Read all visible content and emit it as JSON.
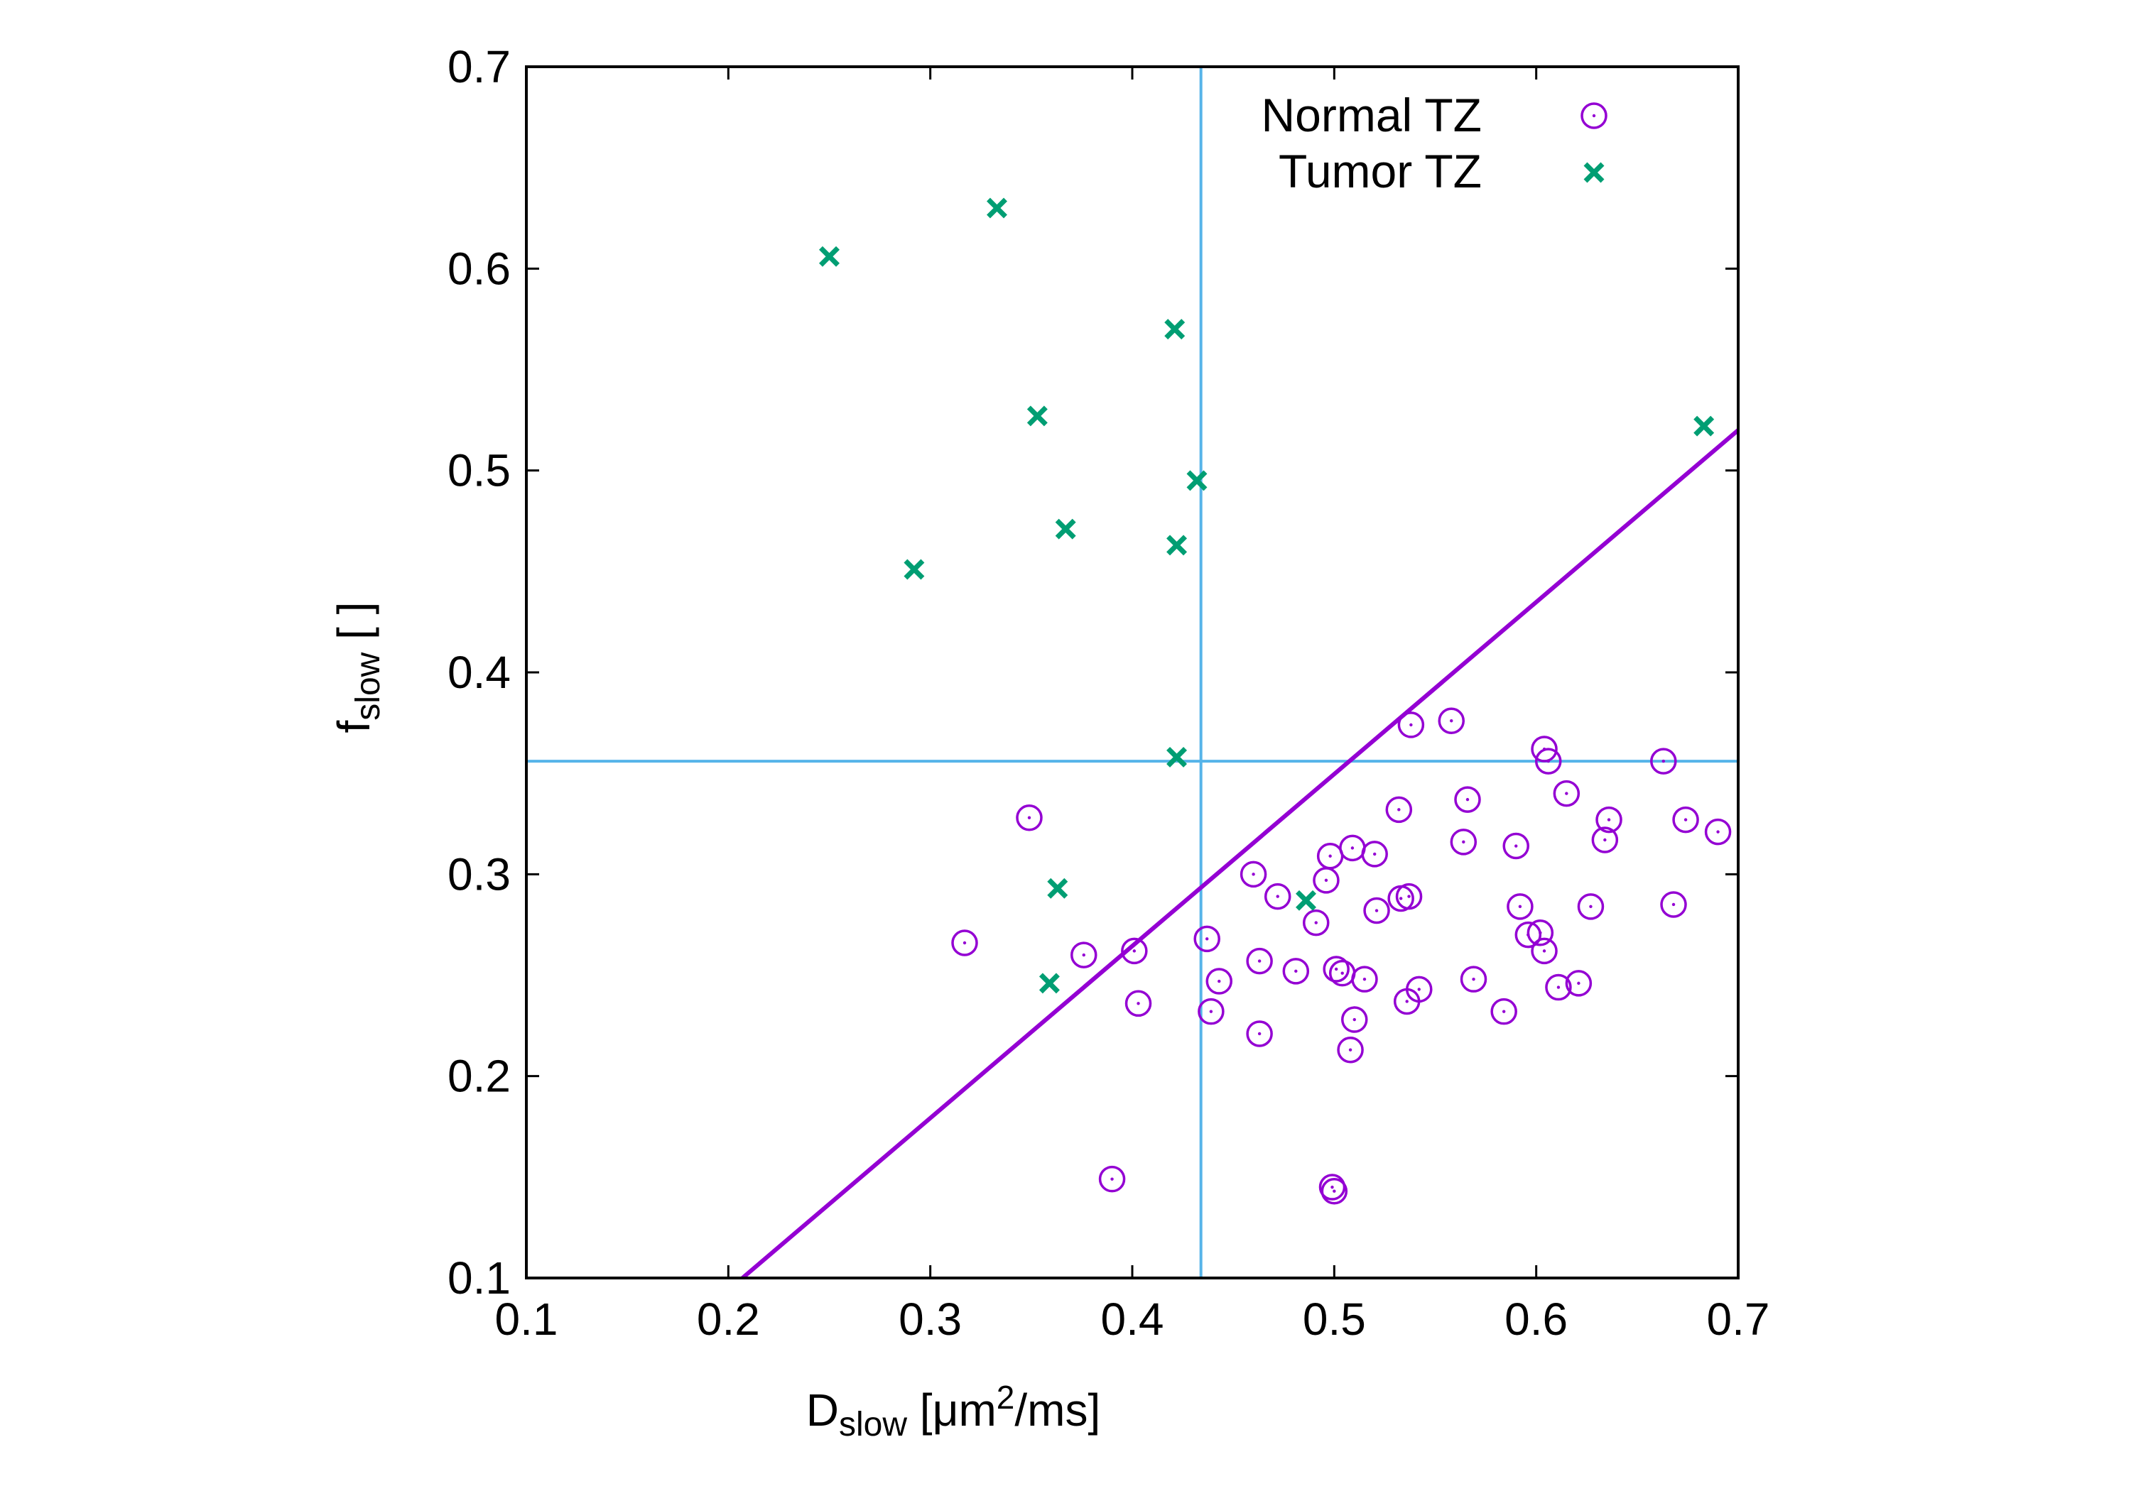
{
  "chart_data": {
    "type": "scatter",
    "xlabel": {
      "main": "D",
      "sub": "slow",
      "pre_sup": " [μm",
      "sup": "2",
      "post": "/ms]"
    },
    "ylabel": {
      "main": "f",
      "sub": "slow",
      "post": " [ ]"
    },
    "xlim": [
      0.1,
      0.7
    ],
    "ylim": [
      0.1,
      0.7
    ],
    "xticks": [
      "0.1",
      "0.2",
      "0.3",
      "0.4",
      "0.5",
      "0.6",
      "0.7"
    ],
    "yticks": [
      "0.1",
      "0.2",
      "0.3",
      "0.4",
      "0.5",
      "0.6",
      "0.7"
    ],
    "threshold_x": 0.434,
    "threshold_y": 0.356,
    "threshold_color": "#56b4e9",
    "decision_line": {
      "x1": 0.207,
      "y1": 0.1,
      "x2": 0.7,
      "y2": 0.52,
      "color": "#9400d3"
    },
    "series": [
      {
        "name": "Normal TZ",
        "marker": "circle",
        "color": "#9400d3",
        "points": [
          [
            0.317,
            0.266
          ],
          [
            0.349,
            0.328
          ],
          [
            0.376,
            0.26
          ],
          [
            0.39,
            0.149
          ],
          [
            0.401,
            0.262
          ],
          [
            0.403,
            0.236
          ],
          [
            0.437,
            0.268
          ],
          [
            0.439,
            0.232
          ],
          [
            0.443,
            0.247
          ],
          [
            0.46,
            0.3
          ],
          [
            0.463,
            0.257
          ],
          [
            0.463,
            0.221
          ],
          [
            0.472,
            0.289
          ],
          [
            0.481,
            0.252
          ],
          [
            0.491,
            0.276
          ],
          [
            0.496,
            0.297
          ],
          [
            0.498,
            0.309
          ],
          [
            0.499,
            0.145
          ],
          [
            0.5,
            0.143
          ],
          [
            0.501,
            0.253
          ],
          [
            0.504,
            0.251
          ],
          [
            0.508,
            0.213
          ],
          [
            0.509,
            0.313
          ],
          [
            0.51,
            0.228
          ],
          [
            0.515,
            0.248
          ],
          [
            0.52,
            0.31
          ],
          [
            0.521,
            0.282
          ],
          [
            0.532,
            0.332
          ],
          [
            0.533,
            0.288
          ],
          [
            0.536,
            0.237
          ],
          [
            0.537,
            0.289
          ],
          [
            0.538,
            0.374
          ],
          [
            0.542,
            0.243
          ],
          [
            0.558,
            0.376
          ],
          [
            0.564,
            0.316
          ],
          [
            0.566,
            0.337
          ],
          [
            0.569,
            0.248
          ],
          [
            0.584,
            0.232
          ],
          [
            0.59,
            0.314
          ],
          [
            0.592,
            0.284
          ],
          [
            0.596,
            0.27
          ],
          [
            0.602,
            0.271
          ],
          [
            0.604,
            0.262
          ],
          [
            0.604,
            0.362
          ],
          [
            0.606,
            0.356
          ],
          [
            0.611,
            0.244
          ],
          [
            0.615,
            0.34
          ],
          [
            0.621,
            0.246
          ],
          [
            0.627,
            0.284
          ],
          [
            0.634,
            0.317
          ],
          [
            0.636,
            0.327
          ],
          [
            0.663,
            0.356
          ],
          [
            0.668,
            0.285
          ],
          [
            0.674,
            0.327
          ],
          [
            0.69,
            0.321
          ]
        ]
      },
      {
        "name": "Tumor TZ",
        "marker": "x",
        "color": "#009e73",
        "points": [
          [
            0.25,
            0.606
          ],
          [
            0.292,
            0.451
          ],
          [
            0.333,
            0.63
          ],
          [
            0.353,
            0.527
          ],
          [
            0.359,
            0.246
          ],
          [
            0.363,
            0.293
          ],
          [
            0.367,
            0.471
          ],
          [
            0.421,
            0.57
          ],
          [
            0.422,
            0.358
          ],
          [
            0.422,
            0.463
          ],
          [
            0.432,
            0.495
          ],
          [
            0.486,
            0.287
          ],
          [
            0.683,
            0.522
          ]
        ]
      }
    ]
  }
}
